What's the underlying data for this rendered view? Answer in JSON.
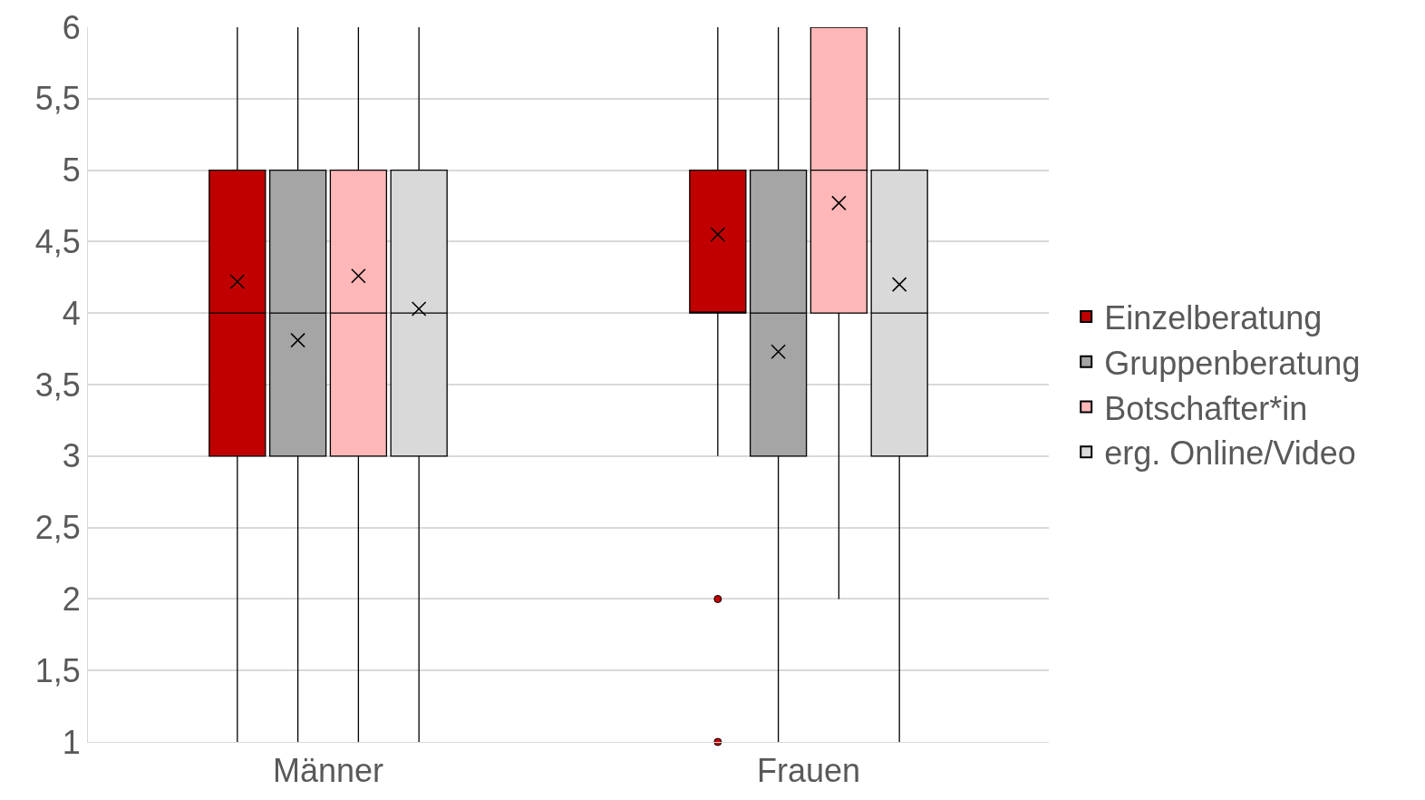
{
  "chart_data": {
    "type": "box",
    "categories": [
      "Männer",
      "Frauen"
    ],
    "ylim": [
      1,
      6
    ],
    "yticks": [
      1,
      {
        "value": 1.5,
        "label": "1,5"
      },
      2,
      {
        "value": 2.5,
        "label": "2,5"
      },
      3,
      {
        "value": 3.5,
        "label": "3,5"
      },
      4,
      {
        "value": 4.5,
        "label": "4,5"
      },
      5,
      {
        "value": 5.5,
        "label": "5,5"
      },
      6
    ],
    "grid": "y",
    "legend": "right",
    "marker": "cross",
    "series": [
      {
        "name": "Einzelberatung",
        "color": "#c00000",
        "boxes": [
          {
            "low": 1,
            "q1": 3,
            "median": 4,
            "q3": 5,
            "high": 6,
            "mean": 4.22
          },
          {
            "low": 3,
            "q1": 4,
            "median": 4,
            "q3": 5,
            "high": 6,
            "mean": 4.55,
            "outliers": [
              2,
              1
            ]
          }
        ]
      },
      {
        "name": "Gruppenberatung",
        "color": "#a5a5a5",
        "boxes": [
          {
            "low": 1,
            "q1": 3,
            "median": 4,
            "q3": 5,
            "high": 6,
            "mean": 3.81
          },
          {
            "low": 1,
            "q1": 3,
            "median": 4,
            "q3": 5,
            "high": 6,
            "mean": 3.73
          }
        ]
      },
      {
        "name": "Botschafter*in",
        "color": "#ffb7b7",
        "boxes": [
          {
            "low": 1,
            "q1": 3,
            "median": 4,
            "q3": 5,
            "high": 6,
            "mean": 4.26
          },
          {
            "low": 2,
            "q1": 4,
            "median": 5,
            "q3": 6,
            "high": 6,
            "mean": 4.77
          }
        ]
      },
      {
        "name": "erg. Online/Video",
        "color": "#d9d9d9",
        "boxes": [
          {
            "low": 1,
            "q1": 3,
            "median": 4,
            "q3": 5,
            "high": 6,
            "mean": 4.03
          },
          {
            "low": 1,
            "q1": 3,
            "median": 4,
            "q3": 5,
            "high": 6,
            "mean": 4.2
          }
        ]
      }
    ]
  }
}
